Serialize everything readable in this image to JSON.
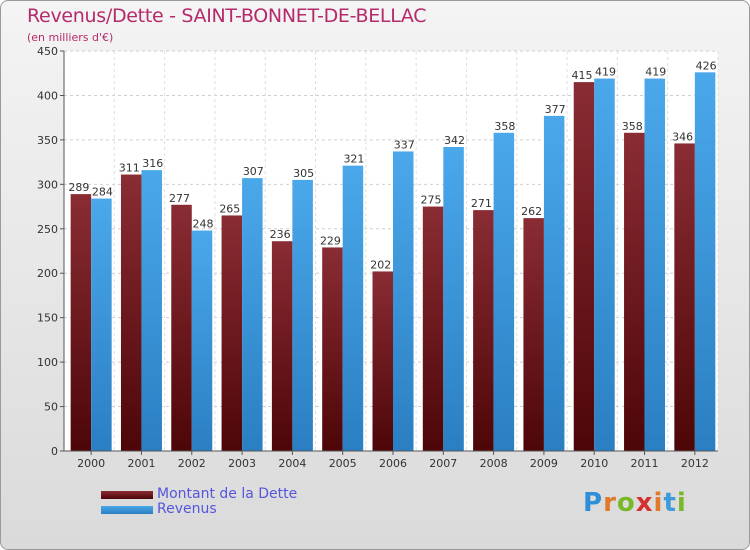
{
  "title": "Revenus/Dette - SAINT-BONNET-DE-BELLAC",
  "subtitle": "(en milliers d'€)",
  "logo": {
    "text": "Proxiti",
    "letter_colors": [
      "#2e8fd8",
      "#e0792a",
      "#79b829",
      "#d62f2f",
      "#e0792a",
      "#3e9ad8",
      "#79b829"
    ]
  },
  "chart_data": {
    "type": "bar",
    "categories": [
      "2000",
      "2001",
      "2002",
      "2003",
      "2004",
      "2005",
      "2006",
      "2007",
      "2008",
      "2009",
      "2010",
      "2011",
      "2012"
    ],
    "series": [
      {
        "name": "Montant de la Dette",
        "color": "#7a2028",
        "values": [
          289,
          311,
          277,
          265,
          236,
          229,
          202,
          275,
          271,
          262,
          415,
          358,
          346
        ]
      },
      {
        "name": "Revenus",
        "color": "#3d9fe3",
        "values": [
          284,
          316,
          248,
          307,
          305,
          321,
          337,
          342,
          358,
          377,
          419,
          419,
          426
        ]
      }
    ],
    "yticks": [
      0,
      50,
      100,
      150,
      200,
      250,
      300,
      350,
      400,
      450
    ],
    "ylim": [
      0,
      450
    ],
    "grid": true,
    "legend_position": "bottom-left"
  }
}
